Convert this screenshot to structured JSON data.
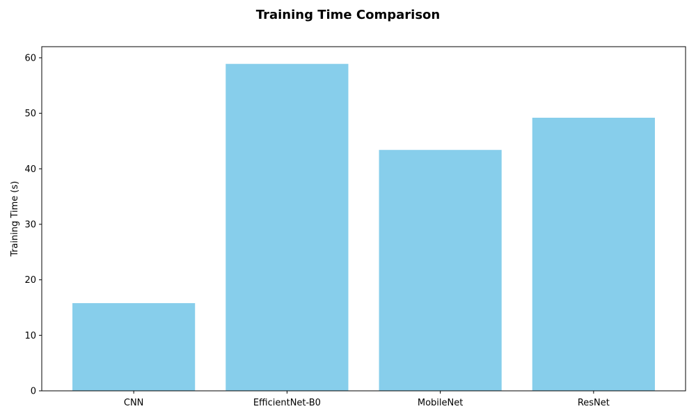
{
  "chart_data": {
    "type": "bar",
    "title": "Training Time Comparison",
    "xlabel": "",
    "ylabel": "Training Time (s)",
    "categories": [
      "CNN",
      "EfficientNet-B0",
      "MobileNet",
      "ResNet"
    ],
    "values": [
      15.8,
      58.9,
      43.4,
      49.2
    ],
    "ylim": [
      0,
      62
    ],
    "yticks": [
      0,
      10,
      20,
      30,
      40,
      50,
      60
    ],
    "bar_color": "#87CEEB",
    "grid": false
  }
}
